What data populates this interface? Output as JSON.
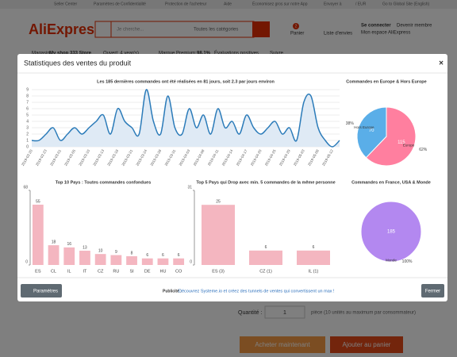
{
  "topbar": {
    "links": [
      "Seller Center",
      "Paramètres de Confidentialité",
      "Protection de l'acheteur",
      "Aide",
      "Économisez gros sur notre App",
      "Envoyer à",
      "/ EUR",
      "Go to Global Site (English)"
    ]
  },
  "header": {
    "logo": "AliExpress",
    "search_placeholder": "Je cherche...",
    "category": "Toutes les catégories",
    "cart_count": "2",
    "cart": "Panier",
    "wishlist": "Liste d'envies",
    "signin": "Se connecter",
    "join": "Devenir membre",
    "account": "Mon espace AliExpress"
  },
  "store": {
    "label": "Magasin:",
    "name": "My shop 333 Store",
    "open": "Ouvert: 4 year(s)",
    "premium": "Marque Premium:",
    "rating": "98.1%",
    "positive": "Évaluations positives",
    "follow": "Suivre"
  },
  "product": {
    "quantity_label": "Quantité :",
    "quantity": "1",
    "limit": "pièce (10 unités au maximum par consommateur)",
    "buy": "Acheter maintenant",
    "add": "Ajouter au panier"
  },
  "modal": {
    "title": "Statistiques des ventes du produit",
    "close": "×",
    "charts": [
      {
        "type": "line",
        "title": "Les 185 dernières commandes ont été réalisées en 81 jours, soit 2.3 par jours environ",
        "color": "#2b7bb9",
        "grid": true,
        "categories": [
          "2019-02-20",
          null,
          "2019-02-23",
          null,
          "2019-03-01",
          null,
          "2019-03-05",
          null,
          "2019-03-10",
          null,
          "2019-03-13",
          null,
          "2019-03-18",
          null,
          "2019-03-21",
          null,
          "2019-03-24",
          null,
          "2019-03-28",
          null,
          "2019-03-31",
          null,
          "2019-04-03",
          null,
          "2019-04-08",
          null,
          "2019-04-11",
          null,
          "2019-04-14",
          null,
          "2019-04-17",
          null,
          "2019-04-20",
          null,
          "2019-04-25",
          null,
          "2019-04-29",
          null,
          "2019-05-03",
          null,
          "2019-05-08",
          null,
          "2019-05-12",
          null
        ],
        "values": [
          1,
          1,
          2,
          3,
          1,
          2,
          3,
          2,
          3,
          4,
          5,
          2,
          6,
          4,
          3,
          2,
          9,
          4,
          2,
          8,
          3,
          2,
          6,
          3,
          5,
          2,
          6,
          3,
          4,
          2,
          5,
          3,
          2,
          3,
          4,
          2,
          3,
          1,
          7,
          8,
          3,
          1,
          0,
          1
        ],
        "ylim": [
          0,
          9
        ],
        "yticks": [
          0,
          1,
          2,
          3,
          4,
          5,
          6,
          7,
          8,
          9
        ]
      },
      {
        "type": "pie",
        "title": "Commandes en Europe & Hors Europe",
        "categories": [
          "Europe",
          "Hors Europe"
        ],
        "values": [
          115,
          70
        ],
        "percent_labels": [
          "62%",
          "38%"
        ],
        "colors": [
          "#ff7f9f",
          "#5aaee8"
        ]
      },
      {
        "type": "bar",
        "title": "Top 10 Pays : Toutes commandes confondues",
        "color": "#f4b6c0",
        "categories": [
          "ES",
          "CL",
          "IL",
          "IT",
          "CZ",
          "RU",
          "SI",
          "DE",
          "HU",
          "CO"
        ],
        "values": [
          55,
          18,
          16,
          13,
          10,
          9,
          8,
          6,
          6,
          6
        ],
        "ylim": [
          0,
          68
        ],
        "yticks": [
          0,
          68
        ]
      },
      {
        "type": "bar",
        "title": "Top 5 Pays qui Drop avec min. 5 commandes de la même personne",
        "color": "#f4b6c0",
        "categories": [
          "ES (3)",
          "CZ (1)",
          "IL (1)"
        ],
        "values": [
          25,
          6,
          6
        ],
        "ylim": [
          0,
          31
        ],
        "yticks": [
          0,
          31
        ]
      },
      {
        "type": "pie",
        "title": "Commandes en France, USA & Monde",
        "categories": [
          "Monde"
        ],
        "values": [
          185
        ],
        "percent_labels": [
          "100%"
        ],
        "colors": [
          "#b388f0"
        ]
      }
    ],
    "footer": {
      "settings": "Paramètres",
      "ad_label": "Publicité :",
      "ad": "Découvrez Systeme.io et créez des tunnels de ventes qui convertissent un max !",
      "close": "Fermer"
    }
  }
}
